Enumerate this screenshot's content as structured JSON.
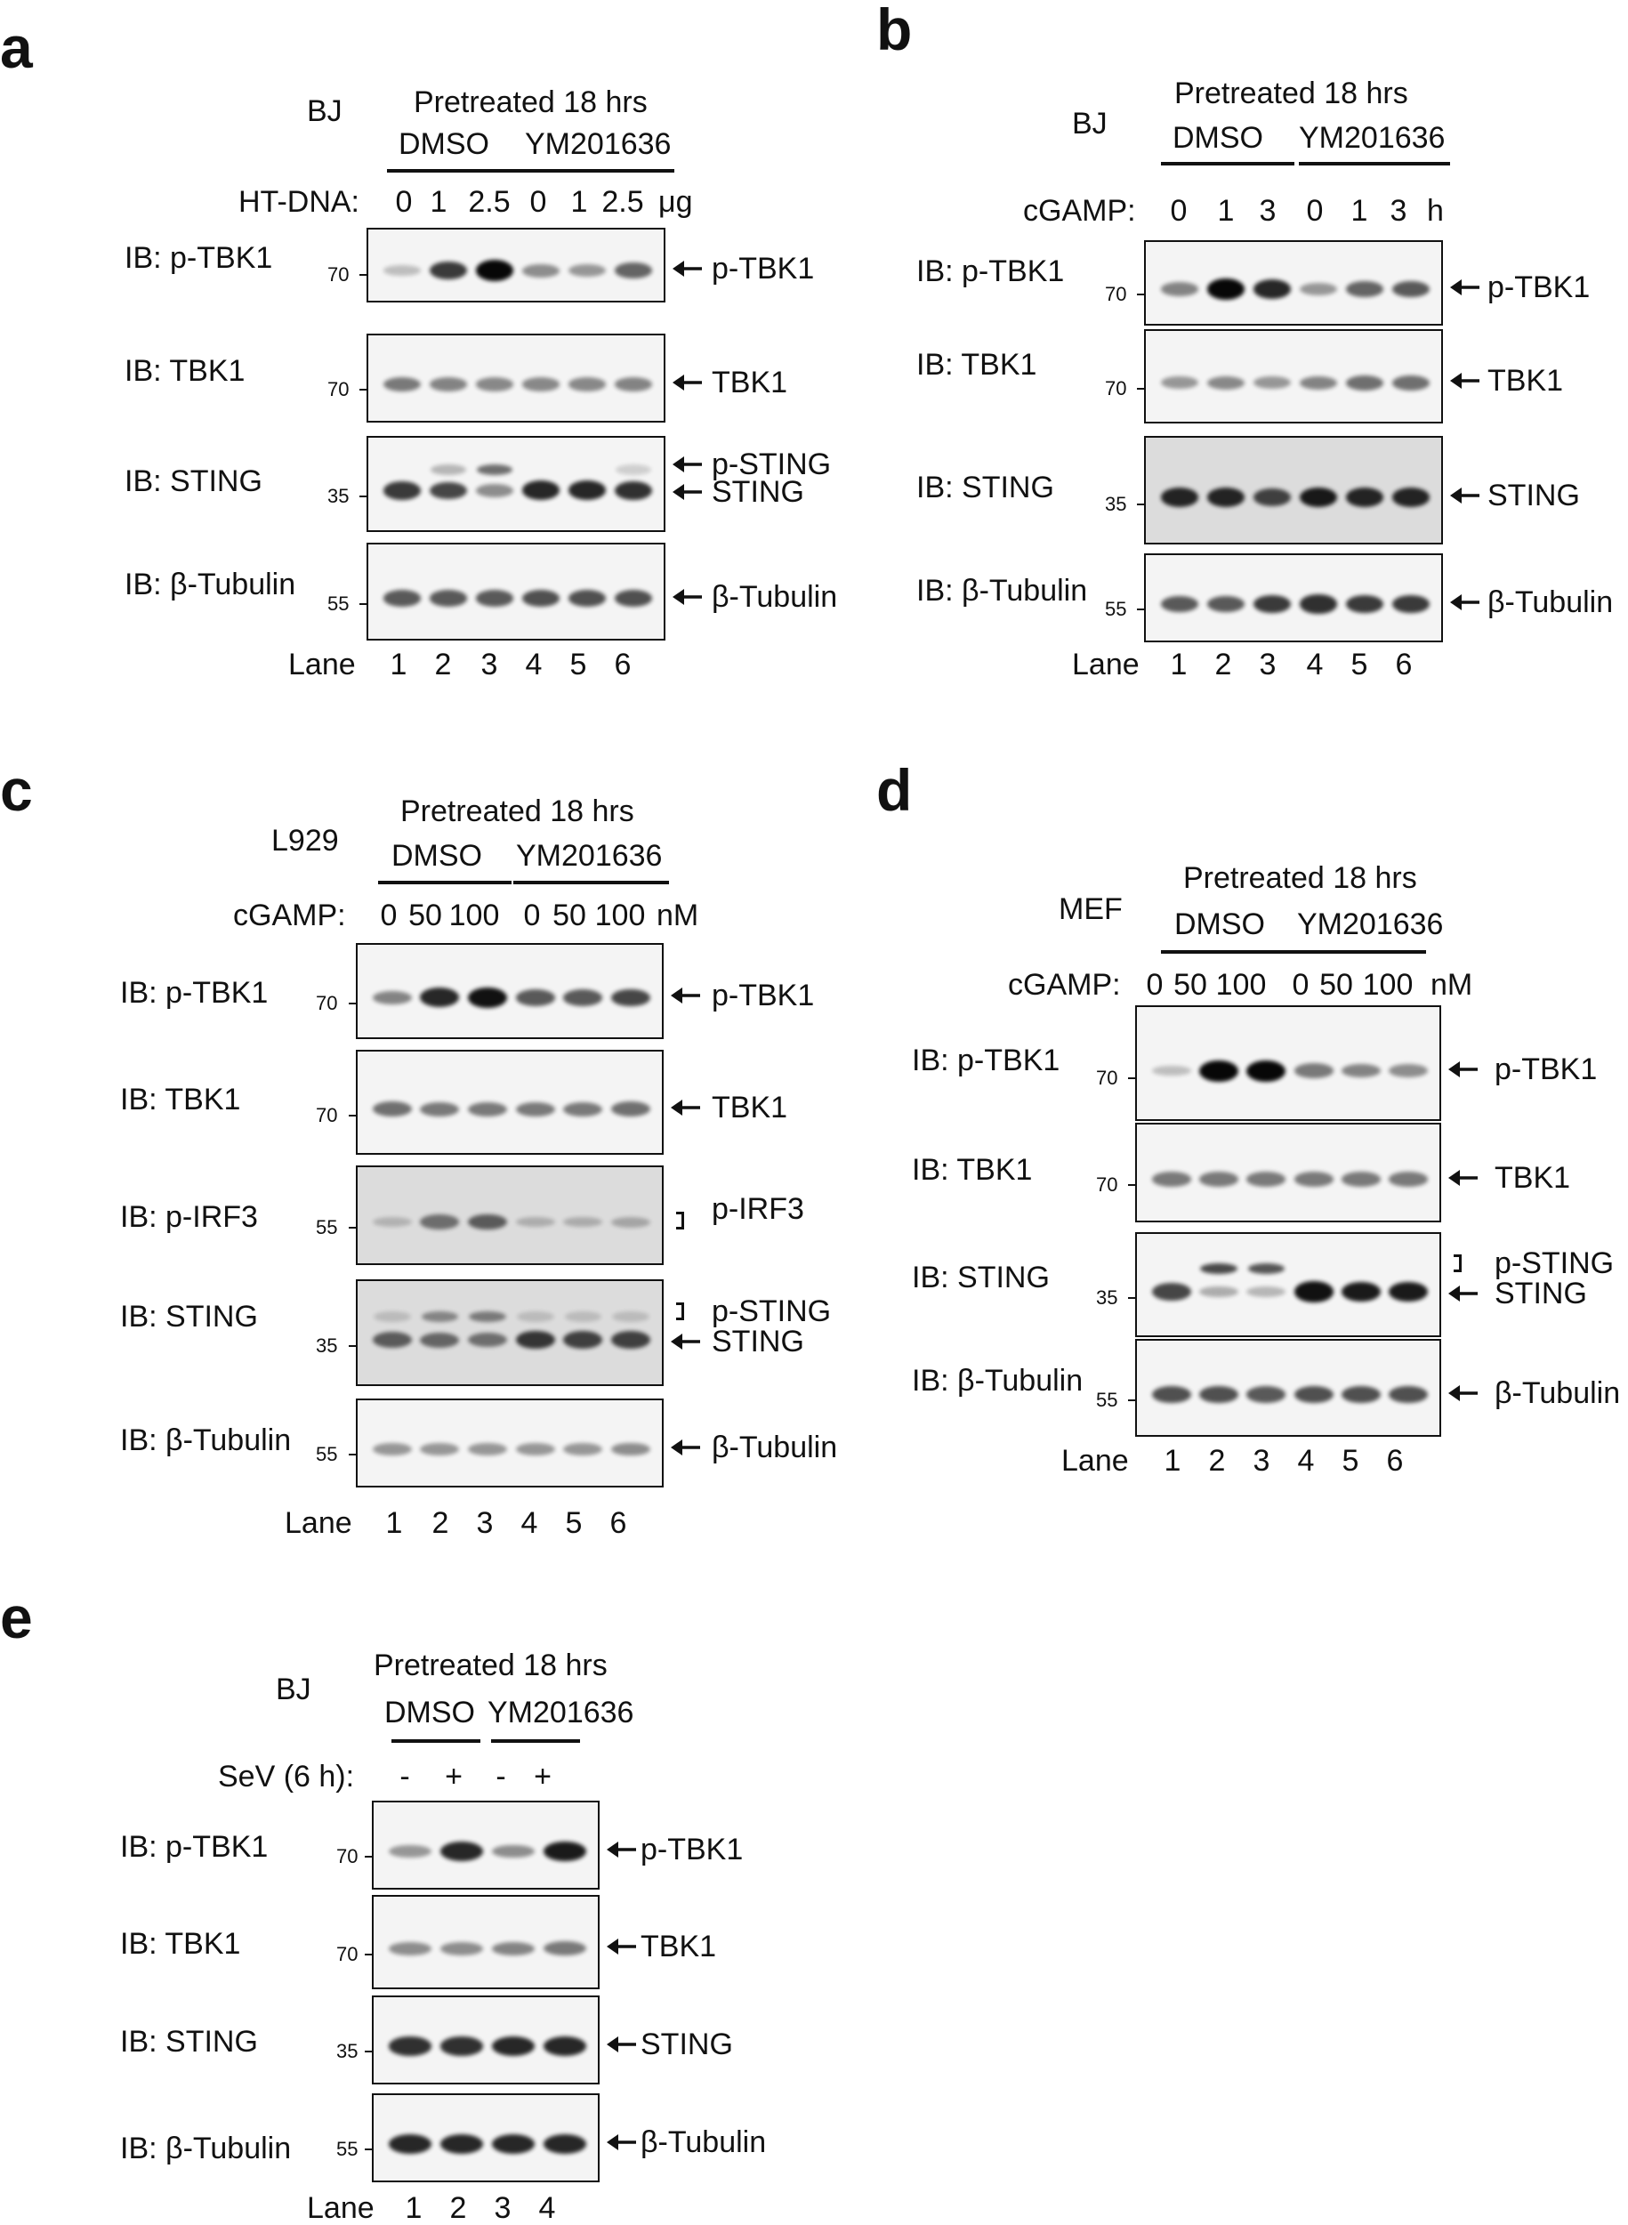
{
  "panels": {
    "a": {
      "letter": "a",
      "cell": "BJ",
      "header": "Pretreated 18 hrs",
      "group1": "DMSO",
      "group2": "YM201636",
      "treat_label": "HT-DNA:",
      "doses": [
        "0",
        "1",
        "2.5",
        "0",
        "1",
        "2.5"
      ],
      "unit": "μg",
      "lane_label": "Lane",
      "lanes": [
        "1",
        "2",
        "3",
        "4",
        "5",
        "6"
      ],
      "blots": [
        {
          "ib": "IB: p-TBK1",
          "mw": "70",
          "target": "p-TBK1"
        },
        {
          "ib": "IB: TBK1",
          "mw": "70",
          "target": "TBK1"
        },
        {
          "ib": "IB: STING",
          "mw": "35",
          "target": "STING",
          "target2": "p-STING"
        },
        {
          "ib": "IB: β-Tubulin",
          "mw": "55",
          "target": "β-Tubulin"
        }
      ]
    },
    "b": {
      "letter": "b",
      "cell": "BJ",
      "header": "Pretreated 18 hrs",
      "group1": "DMSO",
      "group2": "YM201636",
      "treat_label": "cGAMP:",
      "doses": [
        "0",
        "1",
        "3",
        "0",
        "1",
        "3"
      ],
      "unit": "h",
      "lane_label": "Lane",
      "lanes": [
        "1",
        "2",
        "3",
        "4",
        "5",
        "6"
      ],
      "blots": [
        {
          "ib": "IB: p-TBK1",
          "mw": "70",
          "target": "p-TBK1"
        },
        {
          "ib": "IB: TBK1",
          "mw": "70",
          "target": "TBK1"
        },
        {
          "ib": "IB: STING",
          "mw": "35",
          "target": "STING"
        },
        {
          "ib": "IB: β-Tubulin",
          "mw": "55",
          "target": "β-Tubulin"
        }
      ]
    },
    "c": {
      "letter": "c",
      "cell": "L929",
      "header": "Pretreated 18 hrs",
      "group1": "DMSO",
      "group2": "YM201636",
      "treat_label": "cGAMP:",
      "doses": [
        "0",
        "50",
        "100",
        "0",
        "50",
        "100"
      ],
      "unit": "nM",
      "lane_label": "Lane",
      "lanes": [
        "1",
        "2",
        "3",
        "4",
        "5",
        "6"
      ],
      "blots": [
        {
          "ib": "IB: p-TBK1",
          "mw": "70",
          "target": "p-TBK1"
        },
        {
          "ib": "IB: TBK1",
          "mw": "70",
          "target": "TBK1"
        },
        {
          "ib": "IB: p-IRF3",
          "mw": "55",
          "target": "p-IRF3"
        },
        {
          "ib": "IB: STING",
          "mw": "35",
          "target": "STING",
          "target2": "p-STING"
        },
        {
          "ib": "IB: β-Tubulin",
          "mw": "55",
          "target": "β-Tubulin"
        }
      ]
    },
    "d": {
      "letter": "d",
      "cell": "MEF",
      "header": "Pretreated 18 hrs",
      "group1": "DMSO",
      "group2": "YM201636",
      "treat_label": "cGAMP:",
      "doses": [
        "0",
        "50",
        "100",
        "0",
        "50",
        "100"
      ],
      "unit": "nM",
      "lane_label": "Lane",
      "lanes": [
        "1",
        "2",
        "3",
        "4",
        "5",
        "6"
      ],
      "blots": [
        {
          "ib": "IB: p-TBK1",
          "mw": "70",
          "target": "p-TBK1"
        },
        {
          "ib": "IB: TBK1",
          "mw": "70",
          "target": "TBK1"
        },
        {
          "ib": "IB: STING",
          "mw": "35",
          "target": "STING",
          "target2": "p-STING"
        },
        {
          "ib": "IB: β-Tubulin",
          "mw": "55",
          "target": "β-Tubulin"
        }
      ]
    },
    "e": {
      "letter": "e",
      "cell": "BJ",
      "header": "Pretreated 18 hrs",
      "group1": "DMSO",
      "group2": "YM201636",
      "treat_label": "SeV (6 h):",
      "doses": [
        "-",
        "+",
        "-",
        "+"
      ],
      "unit": "",
      "lane_label": "Lane",
      "lanes": [
        "1",
        "2",
        "3",
        "4"
      ],
      "blots": [
        {
          "ib": "IB: p-TBK1",
          "mw": "70",
          "target": "p-TBK1"
        },
        {
          "ib": "IB: TBK1",
          "mw": "70",
          "target": "TBK1"
        },
        {
          "ib": "IB: STING",
          "mw": "35",
          "target": "STING"
        },
        {
          "ib": "IB: β-Tubulin",
          "mw": "55",
          "target": "β-Tubulin"
        }
      ]
    }
  },
  "colors": {
    "band": "#000000",
    "membrane": "#f2f2f2",
    "ink": "#111111"
  }
}
